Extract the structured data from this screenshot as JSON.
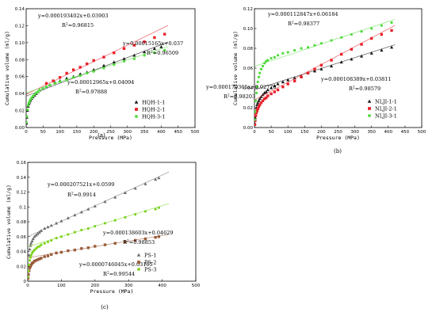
{
  "chart_data": [
    {
      "type": "scatter",
      "panel_label": "(a)",
      "xlabel": "Pressure (MPa)",
      "ylabel": "Cumulative volume (ml/g)",
      "xlim": [
        0,
        500
      ],
      "ylim": [
        0,
        0.14
      ],
      "xticks": [
        0,
        50,
        100,
        150,
        200,
        250,
        300,
        350,
        400,
        450,
        500
      ],
      "yticks": [
        0.0,
        0.02,
        0.04,
        0.06,
        0.08,
        0.1,
        0.12,
        0.14
      ],
      "ytick_labels": [
        "0.00",
        "0.02",
        "0.04",
        "0.06",
        "0.08",
        "0.10",
        "0.12",
        "0.14"
      ],
      "legend_position": "lower-right",
      "series": [
        {
          "name": "HQH-1-1",
          "marker": "triangle",
          "color": "#1a1a1a",
          "fit": {
            "slope": 0.00015165,
            "intercept": 0.037
          },
          "x": [
            1,
            2,
            4,
            6,
            8,
            10,
            13,
            16,
            20,
            25,
            30,
            35,
            40,
            50,
            60,
            70,
            85,
            100,
            120,
            140,
            160,
            180,
            200,
            230,
            260,
            290,
            320,
            350,
            380,
            400
          ],
          "y": [
            0.005,
            0.012,
            0.02,
            0.025,
            0.028,
            0.03,
            0.032,
            0.034,
            0.036,
            0.038,
            0.04,
            0.042,
            0.044,
            0.046,
            0.048,
            0.05,
            0.053,
            0.055,
            0.058,
            0.06,
            0.063,
            0.065,
            0.068,
            0.073,
            0.077,
            0.081,
            0.085,
            0.089,
            0.093,
            0.095
          ]
        },
        {
          "name": "HQH-2-1",
          "marker": "square",
          "color": "#e8202a",
          "fit": {
            "slope": 0.000193402,
            "intercept": 0.03903
          },
          "x": [
            60,
            80,
            100,
            120,
            140,
            160,
            180,
            200,
            230,
            260,
            290,
            320,
            350,
            380,
            410
          ],
          "y": [
            0.052,
            0.055,
            0.059,
            0.064,
            0.068,
            0.071,
            0.075,
            0.079,
            0.083,
            0.088,
            0.093,
            0.097,
            0.101,
            0.106,
            0.11
          ]
        },
        {
          "name": "HQH-3-1",
          "marker": "circle",
          "color": "#4fdc3a",
          "fit": {
            "slope": 0.00012965,
            "intercept": 0.04094
          },
          "x": [
            1,
            2,
            4,
            6,
            8,
            10,
            13,
            16,
            20,
            25,
            30,
            35,
            40,
            50,
            60,
            70,
            85,
            100,
            120,
            140,
            160,
            180,
            200,
            230,
            260,
            290,
            320,
            350,
            380,
            410
          ],
          "y": [
            0.006,
            0.013,
            0.021,
            0.026,
            0.029,
            0.031,
            0.033,
            0.035,
            0.037,
            0.039,
            0.041,
            0.042,
            0.044,
            0.046,
            0.048,
            0.05,
            0.052,
            0.054,
            0.056,
            0.059,
            0.061,
            0.064,
            0.066,
            0.07,
            0.074,
            0.078,
            0.081,
            0.085,
            0.088,
            0.091
          ]
        }
      ],
      "annotations": [
        {
          "text": "y=0.000193402x+0.03903",
          "anchor": "upper-left"
        },
        {
          "text": "R2=0.96815",
          "anchor": "upper-left"
        },
        {
          "text": "y=0.00015165x+0.037",
          "anchor": "middle-right"
        },
        {
          "text": "R2=0.96509",
          "anchor": "middle-right"
        },
        {
          "text": "y=0.00012965x+0.04094",
          "anchor": "lower-center"
        },
        {
          "text": "R2=0.97888",
          "anchor": "lower-center"
        }
      ]
    },
    {
      "type": "scatter",
      "panel_label": "(b)",
      "xlabel": "Pressure (MPa)",
      "ylabel": "Cumulative volume (ml/g)",
      "xlim": [
        0,
        500
      ],
      "ylim": [
        0,
        0.12
      ],
      "xticks": [
        0,
        50,
        100,
        150,
        200,
        250,
        300,
        350,
        400,
        450,
        500
      ],
      "yticks": [
        0.0,
        0.02,
        0.04,
        0.06,
        0.08,
        0.1,
        0.12
      ],
      "ytick_labels": [
        "0.00",
        "0.02",
        "0.04",
        "0.06",
        "0.08",
        "0.10",
        "0.12"
      ],
      "legend_position": "lower-right",
      "series": [
        {
          "name": "NLJI-1-1",
          "marker": "triangle",
          "color": "#1a1a1a",
          "fit": {
            "slope": 0.000108389,
            "intercept": 0.03811
          },
          "x": [
            1,
            2,
            4,
            6,
            8,
            10,
            13,
            16,
            20,
            25,
            30,
            35,
            40,
            50,
            60,
            70,
            85,
            100,
            120,
            140,
            160,
            180,
            200,
            230,
            260,
            290,
            320,
            350,
            380,
            410
          ],
          "y": [
            0.004,
            0.01,
            0.016,
            0.02,
            0.023,
            0.025,
            0.027,
            0.029,
            0.031,
            0.033,
            0.035,
            0.036,
            0.038,
            0.04,
            0.042,
            0.044,
            0.046,
            0.048,
            0.05,
            0.052,
            0.055,
            0.057,
            0.059,
            0.062,
            0.066,
            0.069,
            0.072,
            0.075,
            0.078,
            0.081
          ]
        },
        {
          "name": "NLJI-2-1",
          "marker": "square",
          "color": "#e8202a",
          "fit": {
            "slope": 0.000179365,
            "intercept": 0.02778
          },
          "x": [
            1,
            2,
            4,
            6,
            8,
            10,
            13,
            16,
            20,
            25,
            30,
            35,
            40,
            50,
            60,
            70,
            85,
            100,
            120,
            140,
            160,
            180,
            200,
            230,
            260,
            290,
            320,
            350,
            380,
            410
          ],
          "y": [
            0.003,
            0.007,
            0.012,
            0.015,
            0.017,
            0.019,
            0.021,
            0.023,
            0.025,
            0.027,
            0.029,
            0.03,
            0.032,
            0.034,
            0.036,
            0.038,
            0.041,
            0.044,
            0.047,
            0.051,
            0.055,
            0.059,
            0.063,
            0.068,
            0.074,
            0.079,
            0.084,
            0.09,
            0.094,
            0.098
          ]
        },
        {
          "name": "NLJI-3-1",
          "marker": "circle",
          "color": "#4fdc3a",
          "fit": {
            "slope": 0.000112847,
            "intercept": 0.06184
          },
          "x": [
            1,
            2,
            4,
            6,
            8,
            10,
            13,
            16,
            20,
            25,
            30,
            35,
            40,
            50,
            60,
            70,
            85,
            100,
            120,
            140,
            160,
            180,
            200,
            230,
            260,
            290,
            320,
            350,
            380,
            410
          ],
          "y": [
            0.008,
            0.016,
            0.027,
            0.035,
            0.041,
            0.046,
            0.051,
            0.055,
            0.059,
            0.062,
            0.065,
            0.067,
            0.068,
            0.07,
            0.071,
            0.073,
            0.075,
            0.076,
            0.078,
            0.08,
            0.081,
            0.083,
            0.085,
            0.088,
            0.091,
            0.094,
            0.097,
            0.1,
            0.103,
            0.106
          ]
        }
      ],
      "annotations": [
        {
          "text": "y=0.000112847x+0.06184",
          "anchor": "upper-left"
        },
        {
          "text": "R2=0.98377",
          "anchor": "upper-left"
        },
        {
          "text": "y=0.000108389x+0.03811",
          "anchor": "middle-right"
        },
        {
          "text": "R2=0.98579",
          "anchor": "middle-right"
        },
        {
          "text": "y=0.000179365x+0.02778",
          "anchor": "lower-center"
        },
        {
          "text": "R2=0.98203",
          "anchor": "lower-center"
        }
      ]
    },
    {
      "type": "scatter",
      "panel_label": "(c)",
      "xlabel": "Pressure (MPa)",
      "ylabel": "Cumulative volume (ml/g)",
      "xlim": [
        0,
        500
      ],
      "ylim": [
        0,
        0.16
      ],
      "xticks": [
        0,
        100,
        200,
        300,
        400,
        500
      ],
      "yticks": [
        0.0,
        0.02,
        0.04,
        0.06,
        0.08,
        0.1,
        0.12,
        0.14,
        0.16
      ],
      "ytick_labels": [
        "0",
        "0.02",
        "0.04",
        "0.06",
        "0.08",
        "0.1",
        "0.12",
        "0.14",
        "0.16"
      ],
      "legend_position": "lower-right",
      "series": [
        {
          "name": "PS-1",
          "marker": "triangle",
          "color": "#6e6e6e",
          "fit": {
            "slope": 0.000207521,
            "intercept": 0.0599
          },
          "x": [
            1,
            2,
            4,
            6,
            8,
            10,
            13,
            16,
            20,
            25,
            30,
            35,
            40,
            50,
            60,
            70,
            85,
            100,
            120,
            140,
            160,
            180,
            200,
            230,
            260,
            290,
            320,
            350,
            380,
            390
          ],
          "y": [
            0.01,
            0.022,
            0.035,
            0.043,
            0.048,
            0.051,
            0.054,
            0.057,
            0.06,
            0.062,
            0.064,
            0.066,
            0.068,
            0.071,
            0.073,
            0.075,
            0.078,
            0.081,
            0.085,
            0.089,
            0.093,
            0.097,
            0.101,
            0.107,
            0.113,
            0.119,
            0.125,
            0.131,
            0.137,
            0.139
          ]
        },
        {
          "name": "PS-2",
          "marker": "square",
          "color": "#9a5a3a",
          "fit": {
            "slope": 7.46045e-05,
            "intercept": 0.03165
          },
          "x": [
            1,
            2,
            4,
            6,
            8,
            10,
            13,
            16,
            20,
            25,
            30,
            35,
            40,
            50,
            60,
            70,
            85,
            100,
            120,
            140,
            160,
            180,
            200,
            230,
            260,
            290,
            320,
            350,
            380,
            390
          ],
          "y": [
            0.004,
            0.009,
            0.014,
            0.018,
            0.02,
            0.022,
            0.024,
            0.025,
            0.027,
            0.028,
            0.029,
            0.03,
            0.031,
            0.033,
            0.034,
            0.036,
            0.038,
            0.039,
            0.041,
            0.042,
            0.044,
            0.045,
            0.047,
            0.049,
            0.051,
            0.053,
            0.055,
            0.057,
            0.059,
            0.06
          ]
        },
        {
          "name": "PS-3",
          "marker": "circle",
          "color": "#7ed321",
          "fit": {
            "slope": 0.000138603,
            "intercept": 0.04629
          },
          "x": [
            1,
            2,
            4,
            6,
            8,
            10,
            13,
            16,
            20,
            25,
            30,
            35,
            40,
            50,
            60,
            70,
            85,
            100,
            120,
            140,
            160,
            180,
            200,
            230,
            260,
            290,
            320,
            350,
            380,
            390
          ],
          "y": [
            0.006,
            0.014,
            0.022,
            0.028,
            0.032,
            0.035,
            0.038,
            0.04,
            0.042,
            0.044,
            0.046,
            0.047,
            0.049,
            0.051,
            0.053,
            0.055,
            0.058,
            0.06,
            0.063,
            0.066,
            0.069,
            0.071,
            0.074,
            0.078,
            0.082,
            0.086,
            0.09,
            0.094,
            0.097,
            0.099
          ]
        }
      ],
      "annotations": [
        {
          "text": "y=0.000207521x+0.0599",
          "anchor": "upper-left"
        },
        {
          "text": "R2=0.9914",
          "anchor": "upper-left"
        },
        {
          "text": "y=0.000138603x+0.04629",
          "anchor": "middle-right"
        },
        {
          "text": "R2=0.98853",
          "anchor": "middle-right"
        },
        {
          "text": "y=0.0000746045x+0.03165",
          "anchor": "lower-center"
        },
        {
          "text": "R2=0.99544",
          "anchor": "lower-center"
        }
      ]
    }
  ]
}
